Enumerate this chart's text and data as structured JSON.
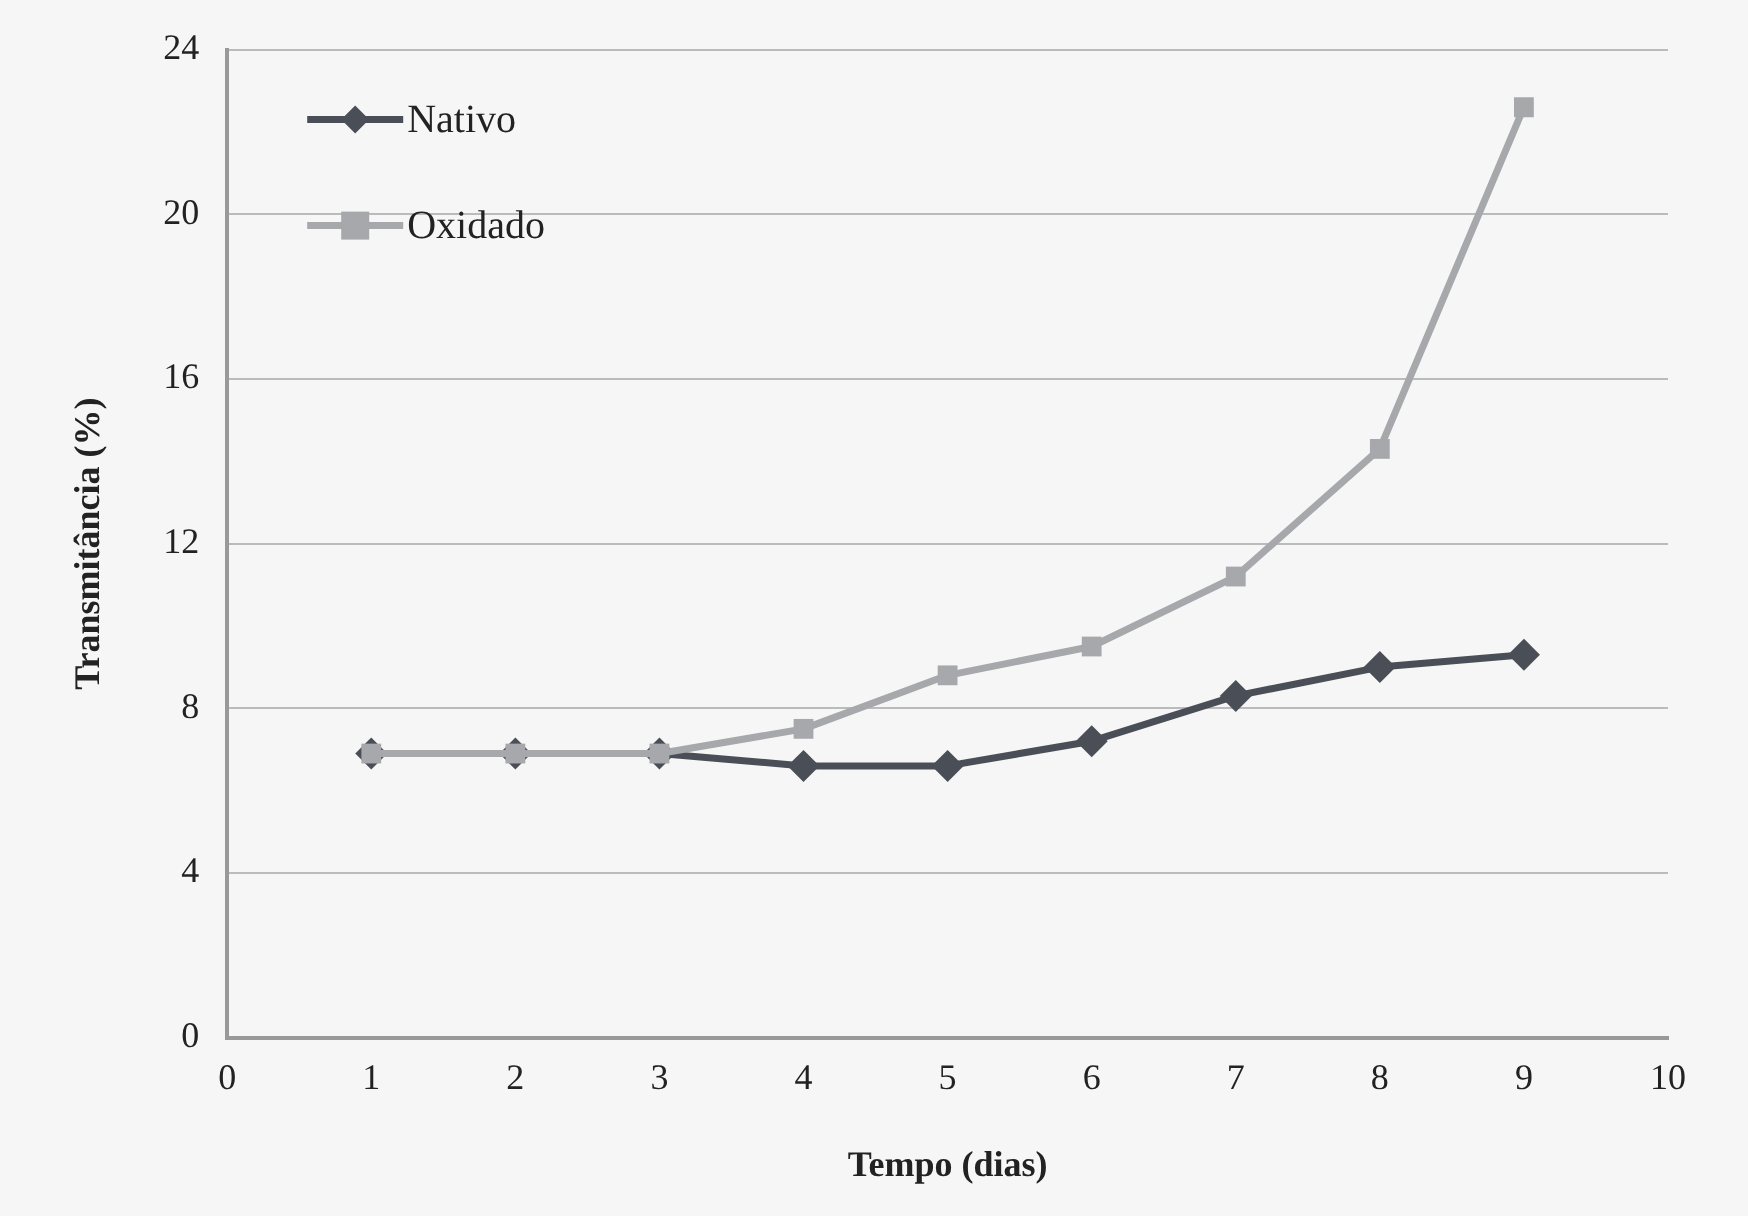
{
  "chart_data": {
    "type": "line",
    "xlabel": "Tempo (dias)",
    "ylabel": "Transmitância (%)",
    "x": [
      1,
      2,
      3,
      4,
      5,
      6,
      7,
      8,
      9
    ],
    "series": [
      {
        "name": "Nativo",
        "color": "#4a4f57",
        "marker": "diamond",
        "values": [
          6.9,
          6.9,
          6.9,
          6.6,
          6.6,
          7.2,
          8.3,
          9.0,
          9.3
        ]
      },
      {
        "name": "Oxidado",
        "color": "#a6a8ab",
        "marker": "square",
        "values": [
          6.9,
          6.9,
          6.9,
          7.5,
          8.8,
          9.5,
          11.2,
          14.3,
          22.6
        ]
      }
    ],
    "xlim": [
      0,
      10
    ],
    "xticks": [
      0,
      1,
      2,
      3,
      4,
      5,
      6,
      7,
      8,
      9,
      10
    ],
    "ylim": [
      0,
      24
    ],
    "yticks": [
      0,
      4,
      8,
      12,
      16,
      20,
      24
    ],
    "grid": "y",
    "legend": "top left",
    "line_style": "solid"
  }
}
